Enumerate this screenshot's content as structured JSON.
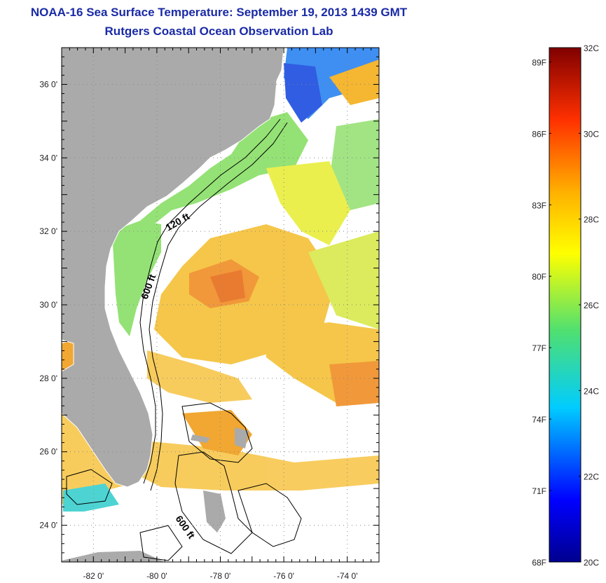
{
  "title": "NOAA-16 Sea Surface Temperature:  September 19, 2013 1439 GMT",
  "subtitle": "Rutgers Coastal Ocean Observation Lab",
  "map": {
    "lon_ticks": [
      {
        "value": -82,
        "label": "-82 0'"
      },
      {
        "value": -80,
        "label": "-80 0'"
      },
      {
        "value": -78,
        "label": "-78 0'"
      },
      {
        "value": -76,
        "label": "-76 0'"
      },
      {
        "value": -74,
        "label": "-74 0'"
      }
    ],
    "lat_ticks": [
      {
        "value": 36,
        "label": "36 0'"
      },
      {
        "value": 34,
        "label": "34 0'"
      },
      {
        "value": 32,
        "label": "32 0'"
      },
      {
        "value": 30,
        "label": "30 0'"
      },
      {
        "value": 28,
        "label": "28 0'"
      },
      {
        "value": 26,
        "label": "26 0'"
      },
      {
        "value": 24,
        "label": "24 0'"
      }
    ],
    "lon_range": [
      -83,
      -73
    ],
    "lat_range": [
      23,
      37
    ],
    "contour_labels": [
      "120 ft",
      "600 ft",
      "600 ft"
    ],
    "colors": {
      "land": "#aaaaaa",
      "clouds": "#ffffff"
    }
  },
  "colorbar": {
    "fahrenheit_labels": [
      "89F",
      "86F",
      "83F",
      "80F",
      "77F",
      "74F",
      "71F",
      "68F"
    ],
    "celsius_labels": [
      "32C",
      "30C",
      "28C",
      "26C",
      "24C",
      "22C",
      "20C"
    ],
    "min_c": 20,
    "max_c": 32
  }
}
